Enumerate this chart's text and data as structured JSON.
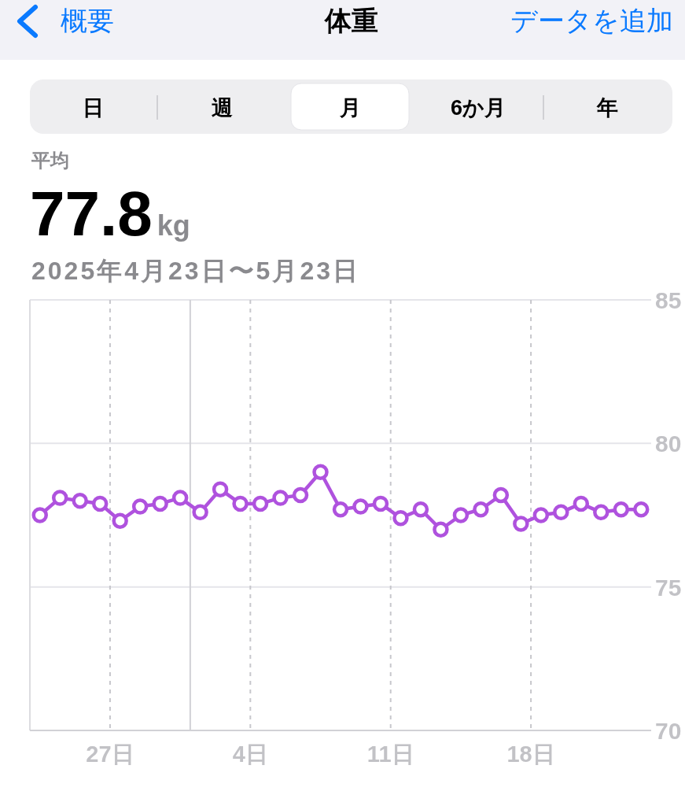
{
  "chart_data": {
    "type": "line",
    "title": "体重",
    "subtitle": "2025年4月23日〜5月23日",
    "annotations": [
      "概要",
      "データを追加",
      "日",
      "週",
      "月",
      "6か月",
      "年",
      "平均",
      "77.8",
      "kg"
    ],
    "x": [
      "2025-04-23T12:00",
      "2025-04-24T12:00",
      "2025-04-25T12:00",
      "2025-04-26T12:00",
      "2025-04-27T12:00",
      "2025-04-28T12:00",
      "2025-04-29T12:00",
      "2025-04-30T12:00",
      "2025-05-01T12:00",
      "2025-05-02T12:00",
      "2025-05-03T12:00",
      "2025-05-04T12:00",
      "2025-05-05T12:00",
      "2025-05-06T12:00",
      "2025-05-07T12:00",
      "2025-05-08T12:00",
      "2025-05-09T12:00",
      "2025-05-10T12:00",
      "2025-05-11T12:00",
      "2025-05-12T12:00",
      "2025-05-13T12:00",
      "2025-05-14T12:00",
      "2025-05-15T12:00",
      "2025-05-16T12:00",
      "2025-05-17T12:00",
      "2025-05-18T12:00",
      "2025-05-19T12:00",
      "2025-05-20T12:00",
      "2025-05-21T12:00",
      "2025-05-22T12:00",
      "2025-05-23T12:00"
    ],
    "series": [
      {
        "color": "#af52de",
        "values": [
          77.5,
          78.1,
          78.0,
          77.9,
          77.3,
          77.8,
          77.9,
          78.1,
          77.6,
          78.4,
          77.9,
          77.9,
          78.1,
          78.2,
          79.0,
          77.7,
          77.8,
          77.9,
          77.4,
          77.7,
          77.0,
          77.5,
          77.7,
          78.2,
          77.2,
          77.5,
          77.6,
          77.9,
          77.6,
          77.7,
          77.7
        ]
      }
    ],
    "xlim": [
      "2025-04-23",
      "2025-05-24"
    ],
    "xticks": [
      {
        "value": "2025-04-27",
        "label": "27日"
      },
      {
        "value": "2025-05-04",
        "label": "4日"
      },
      {
        "value": "2025-05-11",
        "label": "11日"
      },
      {
        "value": "2025-05-18",
        "label": "18日"
      }
    ],
    "ylim": [
      70,
      85
    ],
    "yticks": [
      70,
      75,
      80,
      85
    ],
    "grid": true,
    "ref_lines": [
      {
        "axis": "x",
        "value": "2025-05-01",
        "color": "#d1d1d6"
      }
    ],
    "marker": "circle",
    "line_style": "solid"
  }
}
